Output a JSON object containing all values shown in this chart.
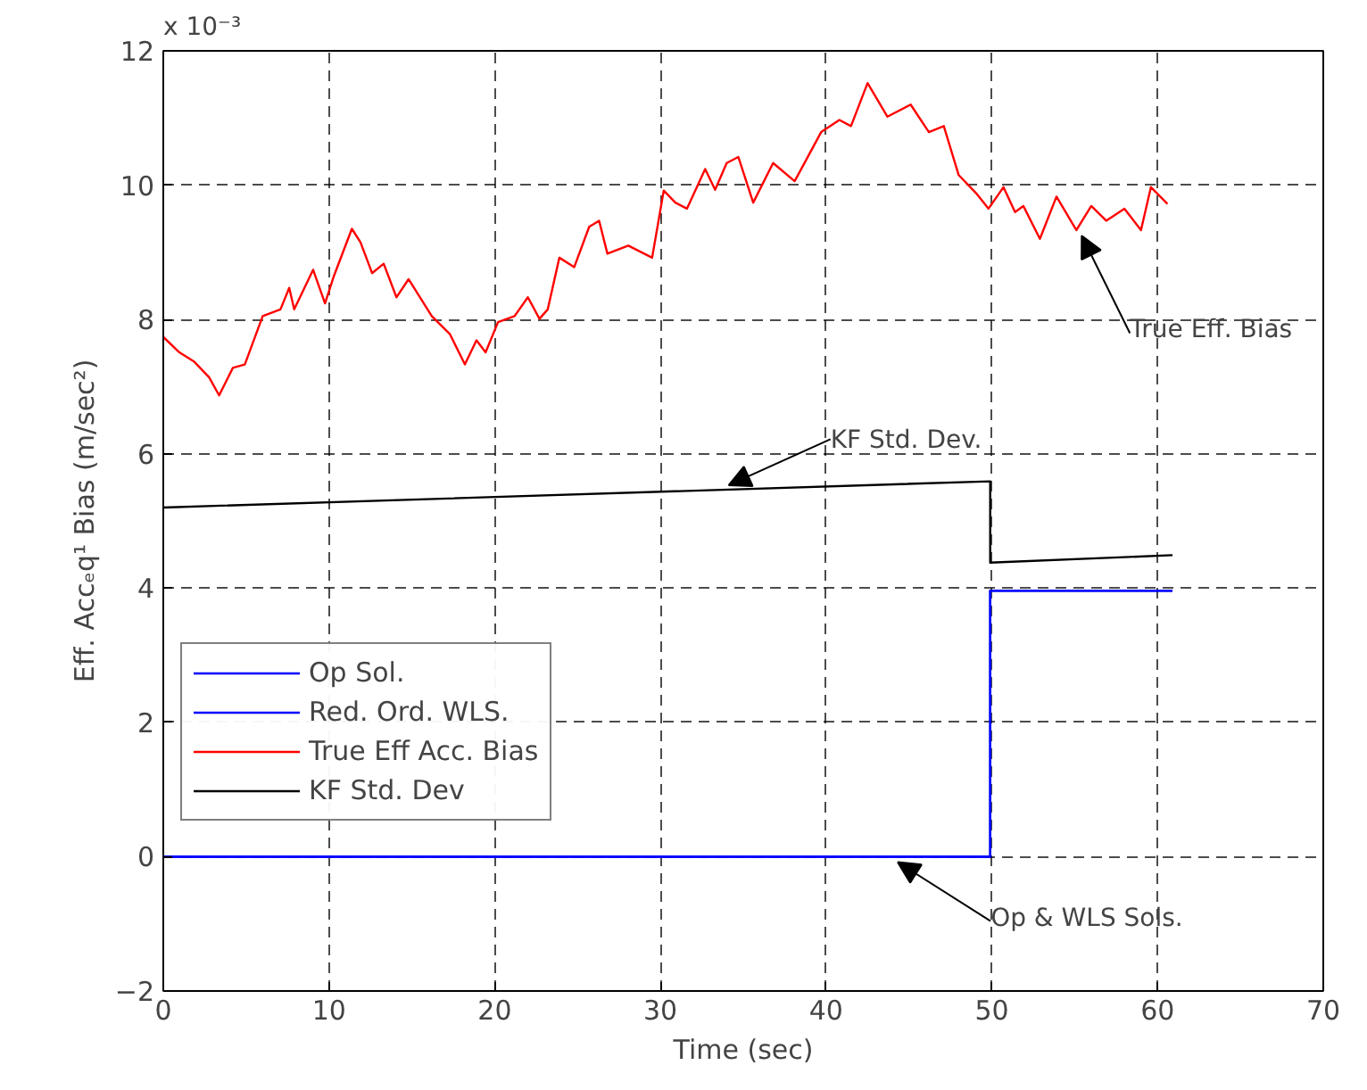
{
  "chart_data": {
    "type": "line",
    "xlabel": "Time (sec)",
    "ylabel": "Eff. Accₑq¹ Bias (m/sec²)",
    "xlim": [
      0,
      70
    ],
    "xticks": [
      0,
      10,
      20,
      30,
      40,
      50,
      60,
      70
    ],
    "ylim": [
      -2,
      12
    ],
    "yticks": [
      -2,
      0,
      2,
      4,
      6,
      8,
      10,
      12
    ],
    "grid": true,
    "legend": "left",
    "line_style": "solid",
    "annotations": [
      "x 10⁻³",
      {
        "text": "True Eff. Bias",
        "x": 55.1,
        "y": 9.33
      },
      {
        "text": "KF Std. Dev.",
        "x": 33.8,
        "y": 5.45
      },
      {
        "text": "Op & WLS Sols.",
        "x": 44,
        "y": 0
      }
    ],
    "series": [
      {
        "name": "Op Sol.",
        "color": "#0000ff",
        "x": [
          0,
          49.9,
          49.9,
          60.9
        ],
        "values": [
          0,
          0,
          3.96,
          3.96
        ]
      },
      {
        "name": "Red. Ord. WLS.",
        "color": "#0000ff",
        "x": [
          0,
          49.9,
          49.9,
          60.9
        ],
        "values": [
          0,
          0,
          3.96,
          3.96
        ]
      },
      {
        "name": "True Eff Acc. Bias",
        "color": "#ff0000",
        "x": [
          0,
          0.97,
          1.87,
          2.76,
          3.37,
          4.2,
          4.92,
          6.0,
          7.07,
          7.6,
          7.9,
          9.04,
          9.76,
          10.3,
          11.38,
          11.9,
          12.6,
          13.3,
          14.07,
          14.8,
          16.2,
          17.3,
          18.2,
          18.9,
          19.45,
          20.2,
          21.2,
          22.0,
          22.7,
          23.2,
          23.9,
          24.8,
          25.7,
          26.3,
          26.8,
          28.06,
          29.5,
          30.2,
          30.9,
          31.6,
          32.7,
          33.3,
          34.0,
          34.7,
          35.6,
          36.8,
          38.1,
          39.7,
          40.8,
          41.5,
          42.5,
          43.7,
          45.1,
          46.2,
          47.1,
          48.0,
          49.05,
          49.8,
          50.7,
          51.4,
          51.9,
          52.9,
          53.9,
          55.1,
          56.0,
          56.9,
          58.0,
          59.0,
          59.6,
          60.6
        ],
        "values": [
          7.74,
          7.51,
          7.37,
          7.14,
          6.87,
          7.28,
          7.33,
          8.05,
          8.15,
          8.47,
          8.15,
          8.74,
          8.24,
          8.65,
          9.35,
          9.15,
          8.69,
          8.83,
          8.33,
          8.6,
          8.05,
          7.78,
          7.33,
          7.69,
          7.51,
          7.96,
          8.05,
          8.33,
          8.01,
          8.15,
          8.92,
          8.78,
          9.38,
          9.47,
          8.98,
          9.1,
          8.92,
          9.92,
          9.74,
          9.65,
          10.24,
          9.93,
          10.33,
          10.42,
          9.74,
          10.33,
          10.06,
          10.79,
          10.97,
          10.88,
          11.52,
          11.02,
          11.2,
          10.79,
          10.88,
          10.15,
          9.88,
          9.65,
          9.97,
          9.6,
          9.69,
          9.2,
          9.83,
          9.33,
          9.69,
          9.47,
          9.65,
          9.33,
          9.97,
          9.72
        ]
      },
      {
        "name": "KF Std. Dev",
        "color": "#000000",
        "x": [
          0,
          49.9,
          49.9,
          60.9
        ],
        "values": [
          5.2,
          5.59,
          4.38,
          4.49
        ]
      }
    ]
  }
}
